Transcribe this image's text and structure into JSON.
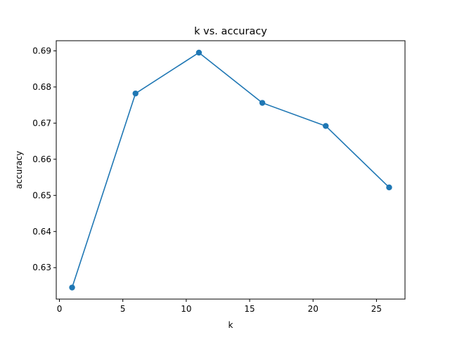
{
  "chart_data": {
    "type": "line",
    "title": "k vs. accuracy",
    "xlabel": "k",
    "ylabel": "accuracy",
    "x": [
      1,
      6,
      11,
      16,
      21,
      26
    ],
    "series": [
      {
        "values": [
          0.6245,
          0.6782,
          0.6895,
          0.6756,
          0.6692,
          0.6522
        ],
        "color": "#1f77b4",
        "marker": "circle"
      }
    ],
    "xlim": [
      -0.25,
      27.25
    ],
    "ylim": [
      0.6213,
      0.6928
    ],
    "x_ticks": [
      0,
      5,
      10,
      15,
      20,
      25
    ],
    "x_tick_labels": [
      "0",
      "5",
      "10",
      "15",
      "20",
      "25"
    ],
    "y_ticks": [
      0.63,
      0.64,
      0.65,
      0.66,
      0.67,
      0.68,
      0.69
    ],
    "y_tick_labels": [
      "0.63",
      "0.64",
      "0.65",
      "0.66",
      "0.67",
      "0.68",
      "0.69"
    ],
    "grid": false,
    "legend": "none"
  }
}
